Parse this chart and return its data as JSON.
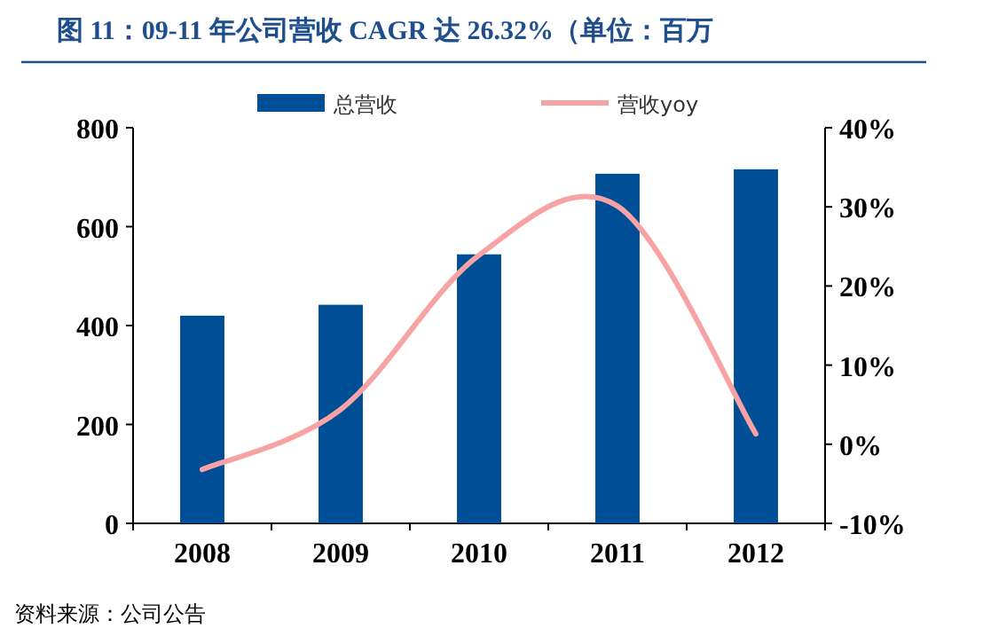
{
  "chart_data": {
    "type": "bar",
    "title": "图 11：09-11 年公司营收 CAGR 达 26.32%（单位：百万",
    "categories": [
      "2008",
      "2009",
      "2010",
      "2011",
      "2012"
    ],
    "series": [
      {
        "name": "总营收",
        "color": "#004f96",
        "values": [
          420,
          442,
          544,
          707,
          716
        ]
      },
      {
        "name": "营收yoy",
        "type": "line",
        "axis": "y2",
        "color": "#f7a3a3",
        "values": [
          -3.2,
          4.4,
          23.9,
          30.1,
          1.3
        ]
      }
    ],
    "ylim": [
      0,
      800
    ],
    "yticks": [
      0,
      200,
      400,
      600,
      800
    ],
    "y2lim": [
      -10,
      40
    ],
    "y2ticks": [
      {
        "value": -10,
        "label": "-10%"
      },
      {
        "value": 0,
        "label": "0%"
      },
      {
        "value": 10,
        "label": "10%"
      },
      {
        "value": 20,
        "label": "20%"
      },
      {
        "value": 30,
        "label": "30%"
      },
      {
        "value": 40,
        "label": "40%"
      }
    ],
    "legend": "top",
    "annotations": [
      "资料来源：公司公告"
    ]
  }
}
